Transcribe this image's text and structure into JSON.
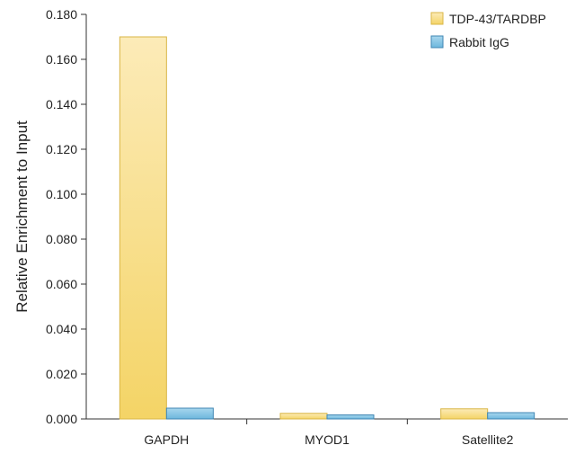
{
  "chart_data": {
    "type": "bar",
    "title": "",
    "xlabel": "",
    "ylabel": "Relative Enrichment to Input",
    "categories": [
      "GAPDH",
      "MYOD1",
      "Satellite2"
    ],
    "series": [
      {
        "name": "TDP-43/TARDBP",
        "values": [
          0.17,
          0.0025,
          0.0045
        ]
      },
      {
        "name": "Rabbit IgG",
        "values": [
          0.0048,
          0.0018,
          0.0028
        ]
      }
    ],
    "ylim": [
      0,
      0.18
    ],
    "yticks": [
      "0.000",
      "0.020",
      "0.040",
      "0.060",
      "0.080",
      "0.100",
      "0.120",
      "0.140",
      "0.160",
      "0.180"
    ],
    "grid": false,
    "legend_position": "top-right",
    "colors": {
      "TDP-43/TARDBP": {
        "light": "#fcebb8",
        "dark": "#f4d466",
        "stroke": "#d9b646"
      },
      "Rabbit IgG": {
        "light": "#a9d7ee",
        "dark": "#6db7dd",
        "stroke": "#3f86b3"
      }
    }
  }
}
